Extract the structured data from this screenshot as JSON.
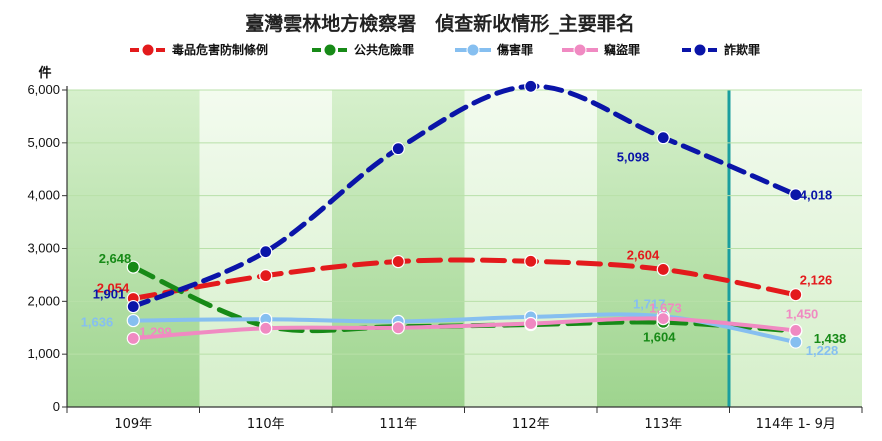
{
  "chart_data": {
    "type": "line",
    "title": "臺灣雲林地方檢察署　偵查新收情形_主要罪名",
    "ylabel": "件",
    "categories": [
      "109年",
      "110年",
      "111年",
      "112年",
      "113年",
      "114年 1- 9月"
    ],
    "ylim": [
      0,
      6000
    ],
    "yticks": [
      "0",
      "1,000",
      "2,000",
      "3,000",
      "4,000",
      "5,000",
      "6,000"
    ],
    "grid": true,
    "legend_position": "top",
    "series": [
      {
        "name": "毒品危害防制條例",
        "color": "#e31a1c",
        "values": [
          2054,
          2486,
          2753,
          2758,
          2604,
          2126
        ],
        "labels": {
          "0": "2,054",
          "4": "2,604",
          "5": "2,126"
        }
      },
      {
        "name": "公共危險罪",
        "color": "#178a17",
        "values": [
          2648,
          1533,
          1520,
          1560,
          1604,
          1438
        ],
        "labels": {
          "0": "2,648",
          "4": "1,604",
          "5": "1,438"
        }
      },
      {
        "name": "傷害罪",
        "color": "#86bff0",
        "values": [
          1636,
          1660,
          1620,
          1705,
          1717,
          1228
        ],
        "labels": {
          "0": "1,636",
          "4": "1,717",
          "5": "1,228"
        }
      },
      {
        "name": "竊盜罪",
        "color": "#f08ac2",
        "values": [
          1299,
          1490,
          1500,
          1580,
          1673,
          1450
        ],
        "labels": {
          "0": "1,299",
          "4": "1,673",
          "5": "1,450"
        }
      },
      {
        "name": "詐欺罪",
        "color": "#0a14a8",
        "values": [
          1901,
          2940,
          4890,
          6070,
          5098,
          4018
        ],
        "labels": {
          "0": "1,901",
          "4": "5,098",
          "5": "4,018"
        }
      }
    ]
  }
}
